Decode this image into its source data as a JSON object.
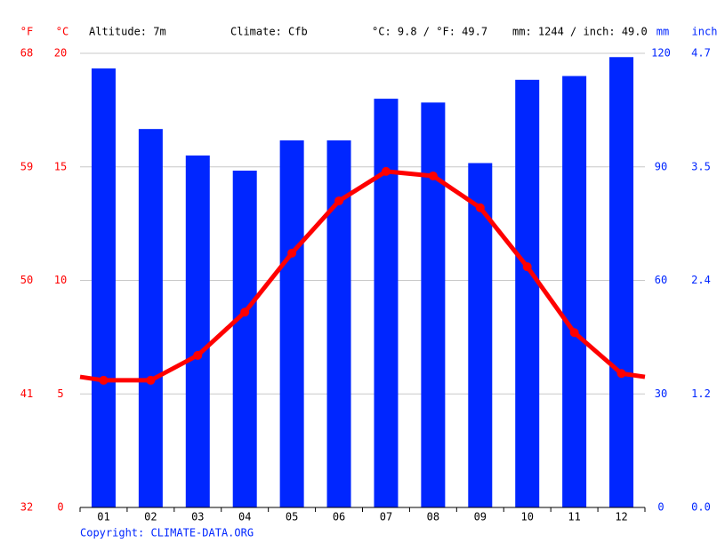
{
  "chart_data": {
    "type": "combo",
    "annotations": [
      "Altitude: 7m",
      "Climate: Cfb",
      "°C: 9.8 / °F: 49.7",
      "mm: 1244 / inch: 49.0"
    ],
    "copyright": "Copyright: CLIMATE-DATA.ORG",
    "y_unit": "°C",
    "y_alt_unit": "°F",
    "y2_unit": "mm",
    "y2_alt_unit": "inch",
    "categories": [
      "01",
      "02",
      "03",
      "04",
      "05",
      "06",
      "07",
      "08",
      "09",
      "10",
      "11",
      "12"
    ],
    "series": [
      {
        "type": "bar",
        "axis": "y2",
        "color": "#0026ff",
        "values": [
          116,
          100,
          93,
          89,
          97,
          97,
          108,
          107,
          91,
          113,
          114,
          119
        ]
      },
      {
        "type": "line",
        "axis": "y",
        "color": "#ff0000",
        "values": [
          5.6,
          5.6,
          6.7,
          8.6,
          11.2,
          13.5,
          14.8,
          14.6,
          13.2,
          10.6,
          7.7,
          5.9
        ]
      }
    ],
    "ylim": [
      0,
      20
    ],
    "yticks": [
      0,
      5,
      10,
      15,
      20
    ],
    "y_alt_ticks": [
      {
        "value": 0,
        "label": "32"
      },
      {
        "value": 5,
        "label": "41"
      },
      {
        "value": 10,
        "label": "50"
      },
      {
        "value": 15,
        "label": "59"
      },
      {
        "value": 20,
        "label": "68"
      }
    ],
    "y2lim": [
      0,
      120
    ],
    "y2ticks": [
      0,
      30,
      60,
      90,
      120
    ],
    "y2_alt_ticks": [
      {
        "value": 0,
        "label": "0.0"
      },
      {
        "value": 30,
        "label": "1.2"
      },
      {
        "value": 60,
        "label": "2.4"
      },
      {
        "value": 90,
        "label": "3.5"
      },
      {
        "value": 120,
        "label": "4.7"
      }
    ],
    "grid": true
  }
}
